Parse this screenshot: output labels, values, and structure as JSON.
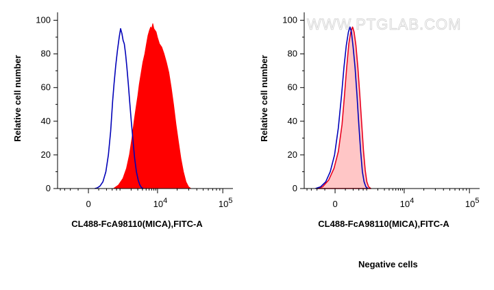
{
  "watermark": "WWW.PTGLAB.COM",
  "caption": "Negative cells",
  "colors": {
    "stained_fill": "#ff0000",
    "stained_line": "#ff0000",
    "control_line": "#0000b8",
    "negative_fill": "#ffc6c6",
    "negative_line": "#e8001e"
  },
  "chart_data": [
    {
      "type": "area",
      "xlabel": "CL488-FcA98110(MICA),FITC-A",
      "ylabel": "Relative cell number",
      "x_scale": "biexponential",
      "x_ticks": [
        "0",
        "10^4",
        "10^5"
      ],
      "x_range": [
        -1500,
        200000
      ],
      "y_ticks": [
        "0",
        "20",
        "40",
        "60",
        "80",
        "100"
      ],
      "ylim": [
        0,
        100
      ],
      "series": [
        {
          "role": "stained",
          "style": "filled",
          "points": [
            [
              650,
              0
            ],
            [
              900,
              2
            ],
            [
              1200,
              6
            ],
            [
              1500,
              12
            ],
            [
              1800,
              20
            ],
            [
              2100,
              30
            ],
            [
              2400,
              40
            ],
            [
              2700,
              48
            ],
            [
              3000,
              55
            ],
            [
              3300,
              62
            ],
            [
              3700,
              69
            ],
            [
              4100,
              75
            ],
            [
              4600,
              80
            ],
            [
              5100,
              86
            ],
            [
              5600,
              91
            ],
            [
              6100,
              94
            ],
            [
              6600,
              96
            ],
            [
              7000,
              95
            ],
            [
              7500,
              98
            ],
            [
              8000,
              95
            ],
            [
              8600,
              94
            ],
            [
              9200,
              93
            ],
            [
              9900,
              90
            ],
            [
              10700,
              86
            ],
            [
              11600,
              84
            ],
            [
              12600,
              80
            ],
            [
              13700,
              75
            ],
            [
              14900,
              69
            ],
            [
              16200,
              60
            ],
            [
              17600,
              50
            ],
            [
              19200,
              38
            ],
            [
              20900,
              28
            ],
            [
              22800,
              18
            ],
            [
              24900,
              10
            ],
            [
              27300,
              4
            ],
            [
              29900,
              1
            ],
            [
              32500,
              0
            ]
          ]
        },
        {
          "role": "control",
          "style": "line",
          "points": [
            [
              120,
              0
            ],
            [
              170,
              0.4
            ],
            [
              230,
              1.5
            ],
            [
              300,
              4
            ],
            [
              380,
              10
            ],
            [
              460,
              20
            ],
            [
              540,
              34
            ],
            [
              620,
              52
            ],
            [
              680,
              62
            ],
            [
              760,
              73
            ],
            [
              850,
              82
            ],
            [
              950,
              90
            ],
            [
              1040,
              95
            ],
            [
              1130,
              92
            ],
            [
              1220,
              88
            ],
            [
              1310,
              86
            ],
            [
              1420,
              80
            ],
            [
              1540,
              72
            ],
            [
              1680,
              62
            ],
            [
              1840,
              51
            ],
            [
              2020,
              40
            ],
            [
              2230,
              29
            ],
            [
              2480,
              18
            ],
            [
              2760,
              10
            ],
            [
              3080,
              5
            ],
            [
              3420,
              2
            ],
            [
              3800,
              0.5
            ],
            [
              4200,
              0
            ]
          ]
        }
      ]
    },
    {
      "type": "area",
      "xlabel": "CL488-FcA98110(MICA),FITC-A",
      "ylabel": "Relative cell number",
      "x_scale": "biexponential",
      "x_ticks": [
        "0",
        "10^4",
        "10^5"
      ],
      "x_range": [
        -1500,
        200000
      ],
      "y_ticks": [
        "0",
        "20",
        "40",
        "60",
        "80",
        "100"
      ],
      "ylim": [
        0,
        100
      ],
      "series": [
        {
          "role": "stained",
          "style": "filled",
          "points": [
            [
              -400,
              0
            ],
            [
              -250,
              1
            ],
            [
              -120,
              5
            ],
            [
              -20,
              12
            ],
            [
              60,
              22
            ],
            [
              130,
              38
            ],
            [
              180,
              55
            ],
            [
              230,
              72
            ],
            [
              280,
              86
            ],
            [
              330,
              93
            ],
            [
              380,
              96
            ],
            [
              430,
              93
            ],
            [
              490,
              85
            ],
            [
              560,
              72
            ],
            [
              640,
              56
            ],
            [
              730,
              38
            ],
            [
              820,
              22
            ],
            [
              910,
              11
            ],
            [
              1010,
              4
            ],
            [
              1130,
              1
            ],
            [
              1300,
              0
            ]
          ]
        },
        {
          "role": "control",
          "style": "line",
          "points": [
            [
              -450,
              0
            ],
            [
              -300,
              1
            ],
            [
              -180,
              4
            ],
            [
              -90,
              10
            ],
            [
              -10,
              20
            ],
            [
              60,
              36
            ],
            [
              120,
              55
            ],
            [
              170,
              72
            ],
            [
              220,
              85
            ],
            [
              270,
              93
            ],
            [
              310,
              96
            ],
            [
              350,
              93
            ],
            [
              400,
              84
            ],
            [
              460,
              72
            ],
            [
              530,
              55
            ],
            [
              600,
              38
            ],
            [
              680,
              22
            ],
            [
              760,
              10
            ],
            [
              850,
              4
            ],
            [
              950,
              1
            ],
            [
              1080,
              0
            ]
          ]
        }
      ]
    }
  ]
}
